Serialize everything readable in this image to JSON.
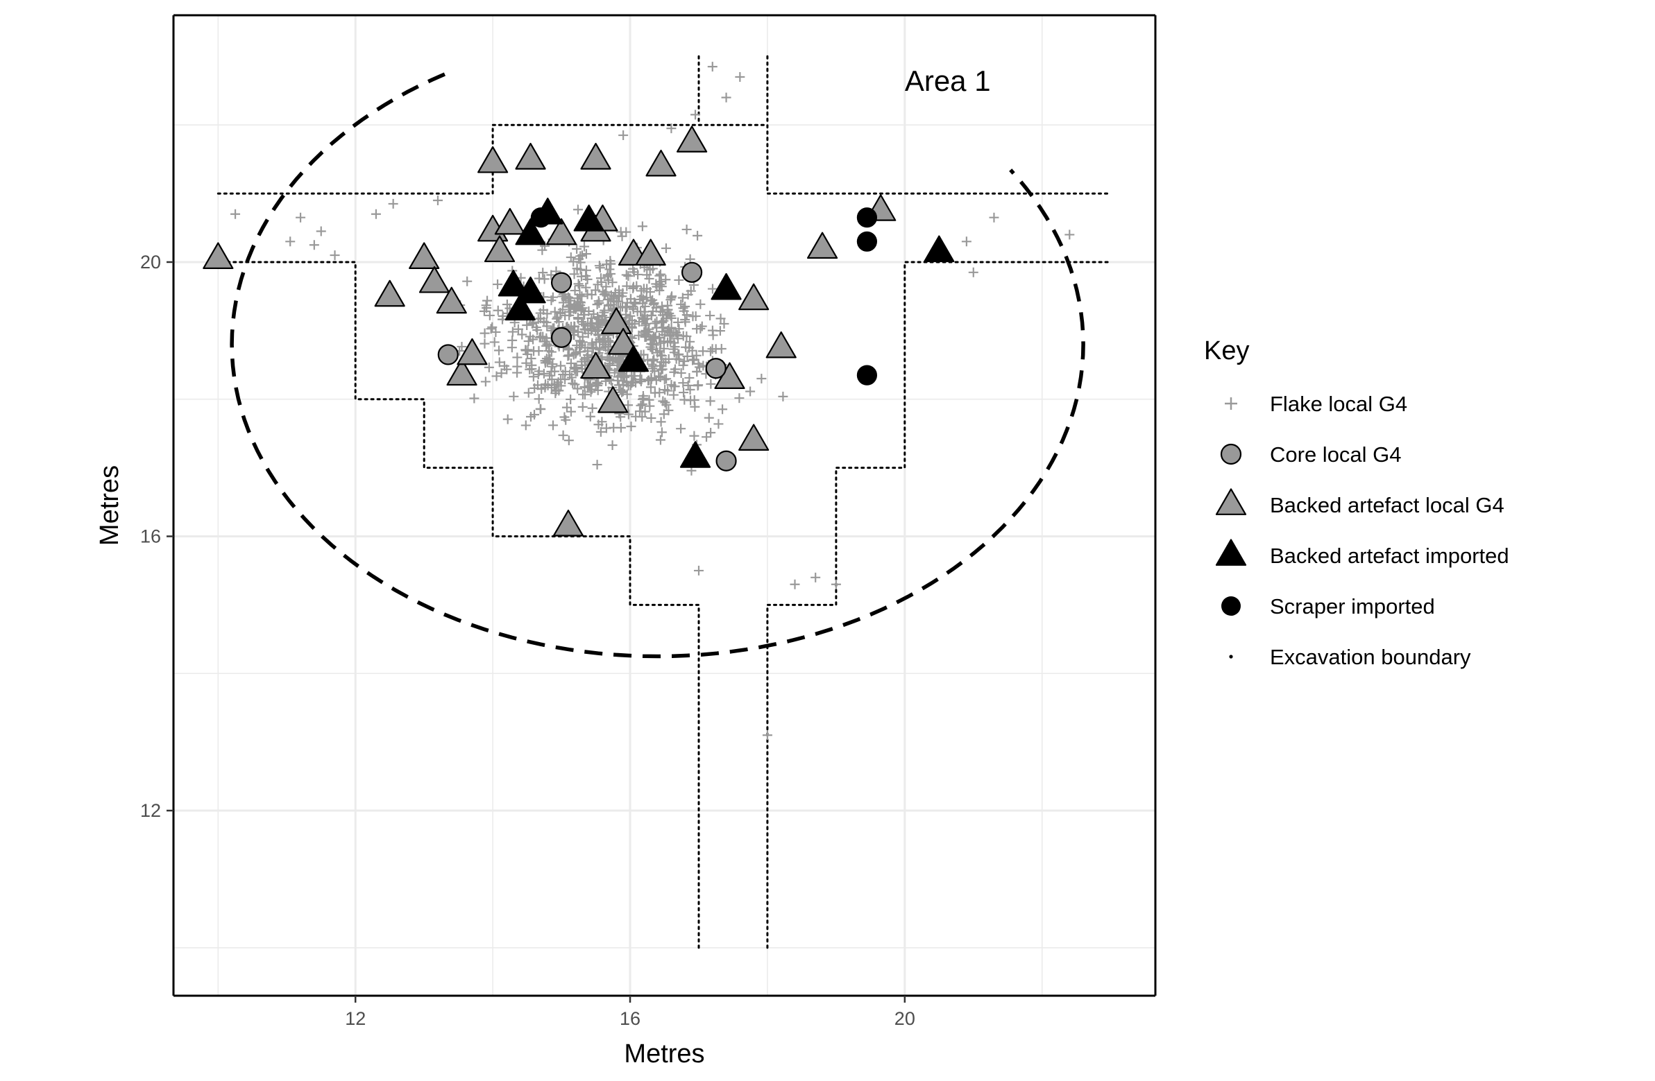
{
  "chart_data": {
    "type": "scatter",
    "title": "",
    "xlabel": "Metres",
    "ylabel": "Metres",
    "xlim": [
      9.35,
      23.65
    ],
    "ylim": [
      9.3,
      23.6
    ],
    "xticks": [
      12,
      16,
      20
    ],
    "yticks": [
      12,
      16,
      20
    ],
    "grid": true,
    "annotation": {
      "text": "Area 1",
      "x": 20.0,
      "y": 22.5
    },
    "legend": {
      "title": "Key",
      "placement": "right",
      "entries": [
        {
          "key": "flake",
          "label": "Flake local G4"
        },
        {
          "key": "core",
          "label": "Core local G4"
        },
        {
          "key": "backed_local",
          "label": "Backed artefact local G4"
        },
        {
          "key": "backed_imported",
          "label": "Backed artefact imported"
        },
        {
          "key": "scraper",
          "label": "Scraper imported"
        },
        {
          "key": "boundary",
          "label": "Excavation boundary"
        }
      ]
    },
    "colors": {
      "flake": "#999999",
      "core_fill": "#999999",
      "backed_local_fill": "#999999",
      "imported": "#000000",
      "grid": "#ebebeb",
      "axis_text": "#4d4d4d"
    },
    "series": [
      {
        "name": "Core local G4",
        "key": "core",
        "points": [
          [
            15.0,
            19.7
          ],
          [
            16.9,
            19.85
          ],
          [
            13.35,
            18.65
          ],
          [
            15.0,
            18.9
          ],
          [
            17.25,
            18.45
          ],
          [
            17.4,
            17.1
          ]
        ]
      },
      {
        "name": "Backed artefact local G4",
        "key": "backed_local",
        "points": [
          [
            10.0,
            20.05
          ],
          [
            12.5,
            19.5
          ],
          [
            13.0,
            20.05
          ],
          [
            13.15,
            19.7
          ],
          [
            13.4,
            19.4
          ],
          [
            13.55,
            18.35
          ],
          [
            13.7,
            18.65
          ],
          [
            14.0,
            21.45
          ],
          [
            14.0,
            20.45
          ],
          [
            14.1,
            20.15
          ],
          [
            14.25,
            20.55
          ],
          [
            14.55,
            21.5
          ],
          [
            15.0,
            20.4
          ],
          [
            15.1,
            16.15
          ],
          [
            15.5,
            20.45
          ],
          [
            15.5,
            21.5
          ],
          [
            15.5,
            18.45
          ],
          [
            15.6,
            20.6
          ],
          [
            15.75,
            17.95
          ],
          [
            15.8,
            19.1
          ],
          [
            15.9,
            18.8
          ],
          [
            16.05,
            20.1
          ],
          [
            16.3,
            20.1
          ],
          [
            16.45,
            21.4
          ],
          [
            16.9,
            21.75
          ],
          [
            17.45,
            18.3
          ],
          [
            17.8,
            17.4
          ],
          [
            17.8,
            19.45
          ],
          [
            18.2,
            18.75
          ],
          [
            18.8,
            20.2
          ],
          [
            19.65,
            20.75
          ]
        ]
      },
      {
        "name": "Backed artefact imported",
        "key": "backed_imported",
        "points": [
          [
            14.3,
            19.65
          ],
          [
            14.4,
            19.3
          ],
          [
            14.55,
            19.55
          ],
          [
            14.55,
            20.4
          ],
          [
            14.8,
            20.7
          ],
          [
            15.4,
            20.6
          ],
          [
            16.05,
            18.55
          ],
          [
            16.95,
            17.15
          ],
          [
            17.4,
            19.6
          ],
          [
            20.5,
            20.15
          ]
        ]
      },
      {
        "name": "Scraper imported",
        "key": "scraper",
        "points": [
          [
            14.7,
            20.65
          ],
          [
            19.45,
            20.65
          ],
          [
            19.45,
            20.3
          ],
          [
            19.45,
            18.35
          ]
        ]
      },
      {
        "name": "Flake local G4",
        "key": "flake",
        "generated": "dense scatter of approx. 900 small grey crosses, concentrated between x 12–20 and y 15.5–22",
        "points": [
          [
            10.25,
            20.7
          ],
          [
            11.2,
            20.65
          ],
          [
            11.4,
            20.25
          ],
          [
            11.05,
            20.3
          ],
          [
            11.5,
            20.45
          ],
          [
            11.7,
            20.1
          ],
          [
            17.6,
            22.7
          ],
          [
            17.4,
            22.4
          ],
          [
            17.2,
            22.85
          ],
          [
            18.0,
            13.1
          ],
          [
            22.4,
            20.4
          ],
          [
            21.3,
            20.65
          ],
          [
            20.9,
            20.3
          ],
          [
            21.0,
            19.85
          ],
          [
            18.4,
            15.3
          ],
          [
            18.7,
            15.4
          ],
          [
            19.0,
            15.3
          ],
          [
            17.0,
            15.5
          ],
          [
            16.95,
            22.15
          ],
          [
            16.6,
            21.95
          ],
          [
            15.9,
            21.85
          ],
          [
            13.2,
            20.9
          ],
          [
            12.55,
            20.85
          ],
          [
            12.3,
            20.7
          ]
        ]
      },
      {
        "name": "Excavation boundary",
        "key": "boundary",
        "paths": [
          [
            [
              17,
              10
            ],
            [
              17,
              15
            ],
            [
              16,
              15
            ],
            [
              16,
              16
            ],
            [
              14,
              16
            ],
            [
              14,
              17
            ],
            [
              13,
              17
            ],
            [
              13,
              18
            ],
            [
              12,
              18
            ],
            [
              12,
              20
            ],
            [
              10,
              20
            ]
          ],
          [
            [
              18,
              10
            ],
            [
              18,
              15
            ],
            [
              19,
              15
            ],
            [
              19,
              17
            ],
            [
              20,
              17
            ],
            [
              20,
              20
            ],
            [
              23,
              20
            ]
          ],
          [
            [
              17,
              23
            ],
            [
              17,
              22
            ]
          ],
          [
            [
              18,
              23
            ],
            [
              18,
              22
            ]
          ],
          [
            [
              10,
              21
            ],
            [
              14,
              21
            ],
            [
              14,
              22
            ],
            [
              18,
              22
            ],
            [
              18,
              21
            ],
            [
              23,
              21
            ]
          ]
        ]
      }
    ],
    "dashed_ellipse": {
      "cx": 16.4,
      "cy": 18.8,
      "rx": 6.2,
      "ry": 4.55,
      "start_deg": 120,
      "end_deg": 395
    }
  }
}
